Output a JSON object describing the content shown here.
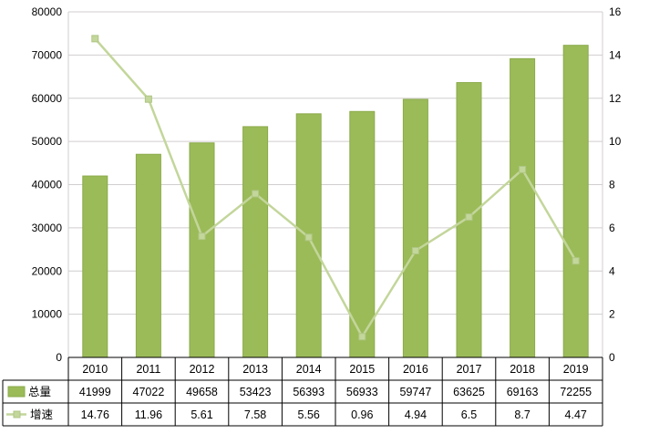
{
  "chart_data": {
    "type": "bar-line-combo",
    "categories": [
      "2010",
      "2011",
      "2012",
      "2013",
      "2014",
      "2015",
      "2016",
      "2017",
      "2018",
      "2019"
    ],
    "series": [
      {
        "name": "总量",
        "type": "bar",
        "axis": "left",
        "values": [
          41999,
          47022,
          49658,
          53423,
          56393,
          56933,
          59747,
          63625,
          69163,
          72255
        ]
      },
      {
        "name": "增速",
        "type": "line",
        "axis": "right",
        "values": [
          14.76,
          11.96,
          5.61,
          7.58,
          5.56,
          0.96,
          4.94,
          6.5,
          8.7,
          4.47
        ]
      }
    ],
    "left_axis": {
      "min": 0,
      "max": 80000,
      "step": 10000
    },
    "right_axis": {
      "min": 0,
      "max": 16,
      "step": 2
    },
    "grid": true,
    "legend_position": "table-left",
    "title": "",
    "xlabel": "",
    "ylabel": ""
  },
  "colors": {
    "bar": "#9BBB59",
    "bar_edge": "#8AAA49",
    "line": "#C3D69B",
    "marker_edge": "#AFC684",
    "grid": "#D0CECE",
    "axis_text": "#000000",
    "table_border": "#000000",
    "background": "#FFFFFF"
  }
}
